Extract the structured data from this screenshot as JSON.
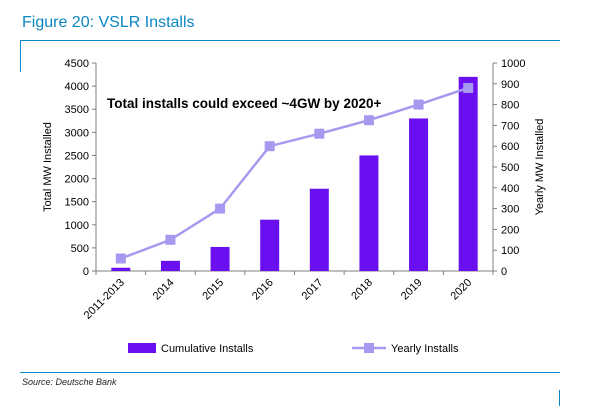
{
  "figure": {
    "title": "Figure 20: VSLR Installs",
    "source": "Source: Deutsche Bank",
    "accent_color": "#0b86c4"
  },
  "chart_data": {
    "type": "bar",
    "categories": [
      "2011-2013",
      "2014",
      "2015",
      "2016",
      "2017",
      "2018",
      "2019",
      "2020"
    ],
    "series": [
      {
        "name": "Cumulative Installs",
        "type": "bar",
        "axis": "left",
        "color": "#6a0ff0",
        "values": [
          70,
          220,
          520,
          1110,
          1780,
          2500,
          3300,
          4200
        ]
      },
      {
        "name": "Yearly Installs",
        "type": "line",
        "axis": "right",
        "color": "#a69af0",
        "values": [
          60,
          150,
          300,
          600,
          660,
          725,
          800,
          880
        ]
      }
    ],
    "annotation": "Total installs could exceed ~4GW by  2020+",
    "ylabel": "Total MW Installed",
    "ylim": [
      0,
      4500
    ],
    "yticks": [
      "0",
      "500",
      "1000",
      "1500",
      "2000",
      "2500",
      "3000",
      "3500",
      "4000",
      "4500"
    ],
    "y2label": "Yearly MW Installed",
    "y2lim": [
      0,
      1000
    ],
    "y2ticks": [
      "0",
      "100",
      "200",
      "300",
      "400",
      "500",
      "600",
      "700",
      "800",
      "900",
      "1000"
    ],
    "grid": false,
    "legend_position": "bottom"
  }
}
